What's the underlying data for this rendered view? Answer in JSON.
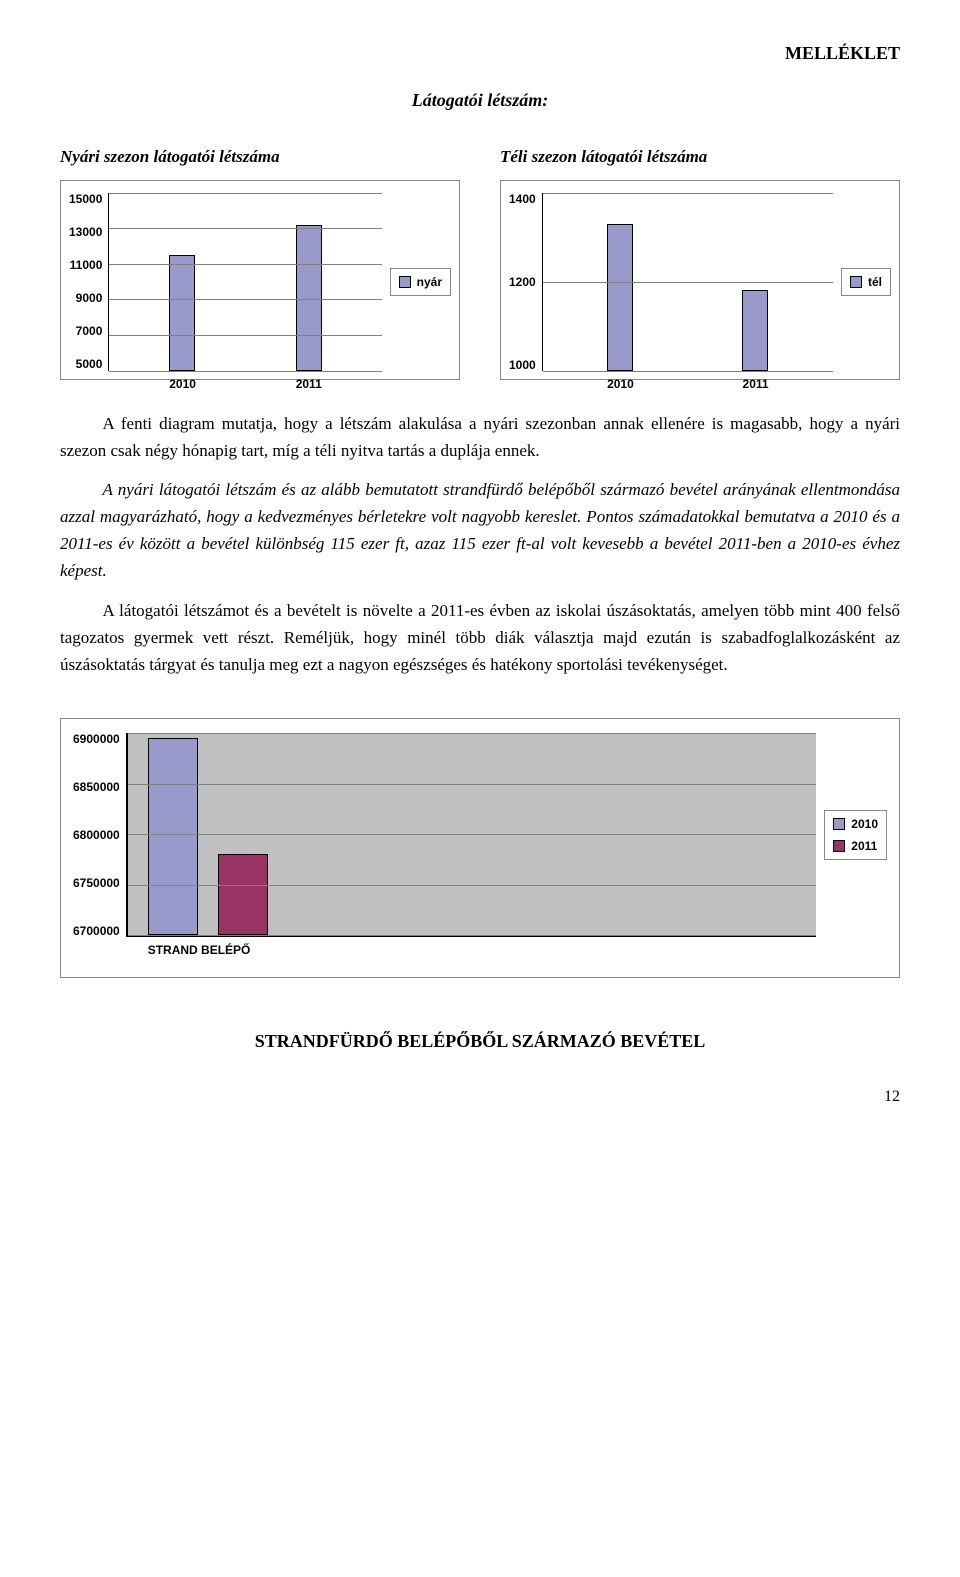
{
  "header": {
    "title": "MELLÉKLET"
  },
  "subtitle": "Látogatói létszám:",
  "chart1": {
    "title": "Nyári szezon látogatói létszáma",
    "type": "bar",
    "categories": [
      "2010",
      "2011"
    ],
    "values": [
      11500,
      13200
    ],
    "ymin": 5000,
    "ymax": 15000,
    "yticks": [
      "15000",
      "13000",
      "11000",
      "9000",
      "7000",
      "5000"
    ],
    "bar_color": "#9999cc",
    "bar_border": "#000000",
    "grid_color": "#808080",
    "legend_label": "nyár",
    "legend_swatch": "#9999cc"
  },
  "chart2": {
    "title": "Téli szezon látogatói létszáma",
    "type": "bar",
    "categories": [
      "2010",
      "2011"
    ],
    "values": [
      1330,
      1180
    ],
    "ymin": 1000,
    "ymax": 1400,
    "yticks": [
      "1400",
      "1200",
      "1000"
    ],
    "bar_color": "#9999cc",
    "bar_border": "#000000",
    "grid_color": "#808080",
    "legend_label": "tél",
    "legend_swatch": "#9999cc"
  },
  "paragraphs": {
    "p1a": "A fenti diagram mutatja, hogy a létszám alakulása a nyári szezonban annak ellenére is magasabb, hogy a nyári szezon csak négy hónapig tart, míg a téli nyitva tartás a duplája ennek.",
    "p1b": "A nyári látogatói létszám és az alább bemutatott strandfürdő belépőből származó bevétel arányának ellentmondása azzal magyarázható, hogy a kedvezményes bérletekre volt nagyobb kereslet. Pontos számadatokkal bemutatva a 2010 és a 2011-es év között a bevétel különbség 115 ezer ft, azaz 115 ezer ft-al volt kevesebb a bevétel 2011-ben a 2010-es évhez képest.",
    "p2": "A látogatói létszámot és a bevételt is növelte a 2011-es évben az iskolai úszásoktatás, amelyen több mint 400 felső tagozatos gyermek vett részt. Reméljük, hogy minél több diák választja majd ezután is szabadfoglalkozásként az úszásoktatás tárgyat és tanulja meg ezt a nagyon egészséges és hatékony sportolási tevékenységet."
  },
  "chart3": {
    "type": "bar",
    "x_label": "STRAND BELÉPŐ",
    "categories": [
      "2010",
      "2011"
    ],
    "values": [
      6895000,
      6780000
    ],
    "ymin": 6700000,
    "ymax": 6900000,
    "yticks": [
      "6900000",
      "6850000",
      "6800000",
      "6750000",
      "6700000"
    ],
    "bar_colors": [
      "#9999cc",
      "#993366"
    ],
    "bar_border": "#000000",
    "grid_color": "#808080",
    "wall_color": "#c0c0c0",
    "legend": [
      {
        "label": "2010",
        "swatch": "#9999cc"
      },
      {
        "label": "2011",
        "swatch": "#993366"
      }
    ]
  },
  "bottom_heading": "STRANDFÜRDŐ BELÉPŐBŐL SZÁRMAZÓ BEVÉTEL",
  "page_number": "12"
}
